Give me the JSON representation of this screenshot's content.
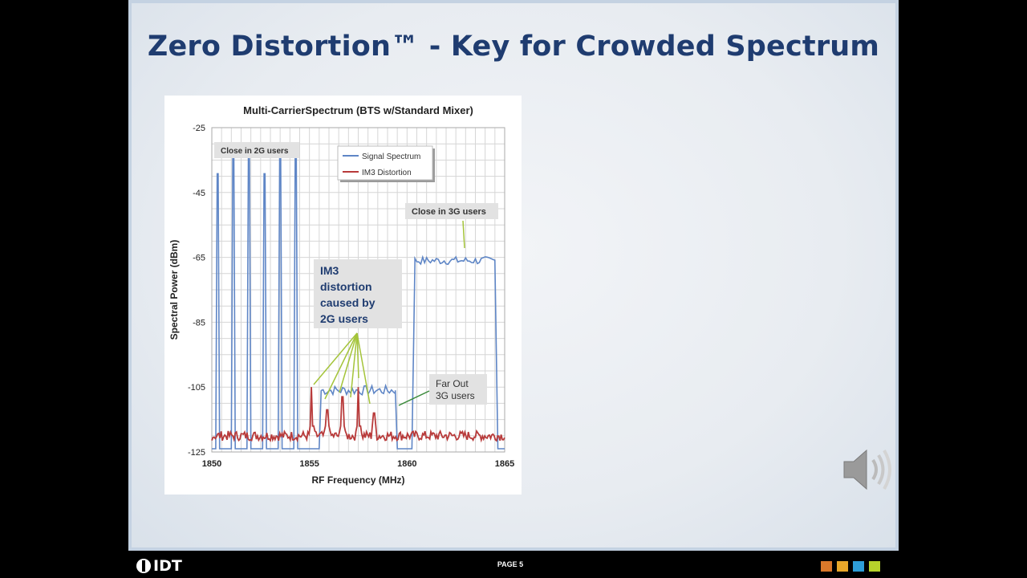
{
  "slide": {
    "title": "Zero Distortion™ - Key for Crowded Spectrum"
  },
  "footer": {
    "logo_text": "IDT",
    "page_label": "PAGE 5",
    "squares": [
      "#d9782a",
      "#e8a72a",
      "#2e9ed8",
      "#b6d22b"
    ]
  },
  "speaker": {
    "icon": "speaker-icon"
  },
  "chart_data": {
    "type": "line",
    "title": "Multi-CarrierSpectrum (BTS w/Standard Mixer)",
    "xlabel": "RF Frequency (MHz)",
    "ylabel": "Spectral Power (dBm)",
    "xlim": [
      1850,
      1865
    ],
    "ylim": [
      -125,
      -25
    ],
    "xticks": [
      1850,
      1855,
      1860,
      1865
    ],
    "yticks": [
      -25,
      -45,
      -65,
      -85,
      -105,
      -125
    ],
    "grid": true,
    "legend_position": "top-center",
    "colors": {
      "signal": "#5f86c6",
      "im3": "#b83a3a",
      "annotation_arrow": "#a4c43a",
      "gridline": "#d6d6d6"
    },
    "series": [
      {
        "name": "Signal Spectrum",
        "peaks": [
          {
            "x": 1850.3,
            "y": -47
          },
          {
            "x": 1851.1,
            "y": -39
          },
          {
            "x": 1851.9,
            "y": -40
          },
          {
            "x": 1852.7,
            "y": -47
          },
          {
            "x": 1853.5,
            "y": -40
          },
          {
            "x": 1854.3,
            "y": -38
          }
        ],
        "near_band": {
          "x_start": 1855.6,
          "x_end": 1859.4,
          "level": -106
        },
        "wide_band": {
          "x_start": 1860.4,
          "x_end": 1864.5,
          "level": -66
        },
        "floor": -124
      },
      {
        "name": "IM3 Distortion",
        "peaks": [
          {
            "x": 1855.1,
            "y": -105
          },
          {
            "x": 1855.9,
            "y": -112
          },
          {
            "x": 1856.7,
            "y": -108
          },
          {
            "x": 1857.5,
            "y": -105
          },
          {
            "x": 1858.3,
            "y": -113
          }
        ],
        "floor": -120
      }
    ],
    "annotations": [
      {
        "text": "Close in 2G users"
      },
      {
        "text": "Close in 3G users"
      },
      {
        "text": "IM3 distortion caused by 2G users"
      },
      {
        "text": "Far Out 3G users"
      }
    ]
  }
}
